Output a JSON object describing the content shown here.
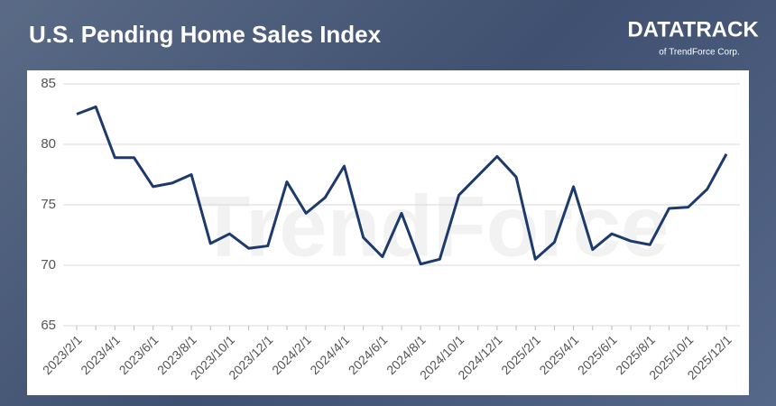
{
  "brand": {
    "name": "DATATRACK",
    "sub": "of TrendForce Corp."
  },
  "watermark": "TrendForce",
  "chart_data": {
    "type": "line",
    "title": "U.S. Pending Home Sales Index",
    "categories": [
      "2023/2/1",
      null,
      "2023/4/1",
      null,
      "2023/6/1",
      null,
      "2023/8/1",
      null,
      "2023/10/1",
      null,
      "2023/12/1",
      null,
      "2024/2/1",
      null,
      "2024/4/1",
      null,
      "2024/6/1",
      null,
      "2024/8/1",
      null,
      "2024/10/1",
      null,
      "2024/12/1",
      null,
      "2025/2/1",
      null,
      "2025/4/1",
      null,
      "2025/6/1",
      null,
      "2025/8/1",
      null,
      "2025/10/1",
      null,
      "2025/12/1"
    ],
    "values": [
      82.5,
      83.1,
      78.9,
      78.9,
      76.5,
      76.8,
      77.5,
      71.8,
      72.6,
      71.4,
      71.6,
      76.9,
      74.3,
      75.6,
      78.2,
      72.3,
      70.7,
      74.3,
      70.1,
      70.5,
      75.8,
      77.4,
      79.0,
      77.3,
      70.5,
      71.9,
      76.5,
      71.3,
      72.6,
      72.0,
      71.7,
      74.7,
      74.8,
      76.3,
      79.2
    ],
    "color": "#1c3a6b",
    "ylim": [
      65,
      85
    ],
    "yticks": [
      65,
      70,
      75,
      80,
      85
    ],
    "grid": true
  }
}
